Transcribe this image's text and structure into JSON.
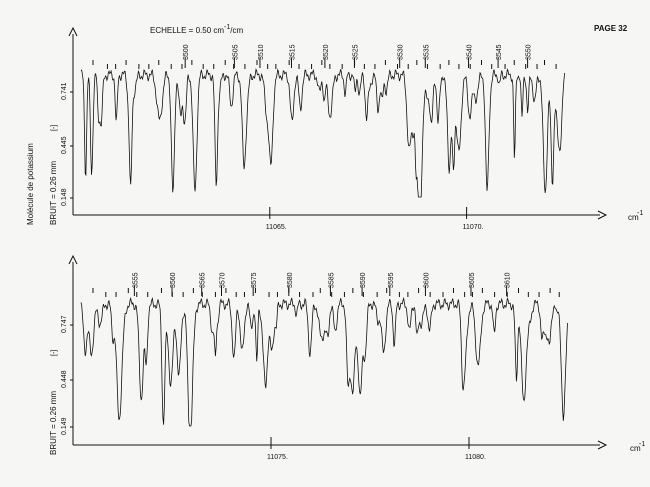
{
  "header": {
    "scale_label": "ECHELLE = 0.50 cm",
    "scale_exp": "-1",
    "scale_unit": "/cm",
    "page_label": "PAGE 32"
  },
  "side_label_molecule": "Molécule de potassium",
  "x_unit": "cm",
  "x_unit_exp": "-1",
  "chart_data": [
    {
      "type": "line",
      "panel": "top",
      "xlim": [
        11060.0,
        11072.5
      ],
      "x_ticks": [
        {
          "value": 11065,
          "label": "11065."
        },
        {
          "value": 11070,
          "label": "11070."
        }
      ],
      "y_tick_labels": [
        "0.741",
        "0.445",
        "0.148"
      ],
      "y_marker": "[-]",
      "noise_label": "BRUIT = 0.26 mm",
      "line_numbers": [
        {
          "label": "3500",
          "x": 11062.85
        },
        {
          "label": "3505",
          "x": 11064.1
        },
        {
          "label": "3510",
          "x": 11064.75
        },
        {
          "label": "3515",
          "x": 11065.55
        },
        {
          "label": "3520",
          "x": 11066.4
        },
        {
          "label": "3525",
          "x": 11067.15
        },
        {
          "label": "3530",
          "x": 11068.3
        },
        {
          "label": "3535",
          "x": 11068.95
        },
        {
          "label": "3540",
          "x": 11070.05
        },
        {
          "label": "3545",
          "x": 11070.8
        },
        {
          "label": "3550",
          "x": 11071.55
        }
      ]
    },
    {
      "type": "line",
      "panel": "bottom",
      "xlim": [
        11070.0,
        11082.5
      ],
      "x_ticks": [
        {
          "value": 11075,
          "label": "11075."
        },
        {
          "value": 11080,
          "label": "11080."
        }
      ],
      "y_tick_labels": [
        "0.747",
        "0.448",
        "0.149"
      ],
      "y_marker": "[-]",
      "noise_label": "BRUIT = 0.26 mm",
      "line_numbers": [
        {
          "label": "3555",
          "x": 11071.55
        },
        {
          "label": "3560",
          "x": 11072.5
        },
        {
          "label": "3565",
          "x": 11073.25
        },
        {
          "label": "3570",
          "x": 11073.75
        },
        {
          "label": "3575",
          "x": 11074.55
        },
        {
          "label": "3580",
          "x": 11075.45
        },
        {
          "label": "3585",
          "x": 11076.5
        },
        {
          "label": "3590",
          "x": 11077.3
        },
        {
          "label": "3595",
          "x": 11078.0
        },
        {
          "label": "3600",
          "x": 11078.9
        },
        {
          "label": "3605",
          "x": 11080.05
        },
        {
          "label": "3610",
          "x": 11080.95
        }
      ]
    }
  ]
}
